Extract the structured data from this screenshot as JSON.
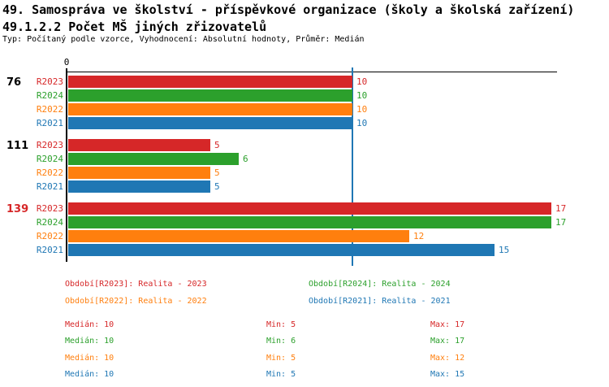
{
  "header": {
    "title_line1": "49. Samospráva ve školství - příspěvkové organizace (školy a školská zařízení)",
    "title_line2": "49.1.2.2 Počet MŠ jiných zřizovatelů",
    "meta": "Typ: Počítaný podle vzorce, Vyhodnocení: Absolutní hodnoty, Průměr: Medián"
  },
  "colors": {
    "R2023": "#d62728",
    "R2024": "#2ca02c",
    "R2022": "#ff7f0e",
    "R2021": "#1f77b4",
    "axis": "#000000",
    "median_line": "#1f77b4",
    "highlight_group_label": "#d62728"
  },
  "chart_data": {
    "type": "bar",
    "orientation": "horizontal",
    "title": "49.1.2.2 Počet MŠ jiných zřizovatelů",
    "xlabel": "",
    "ylabel": "",
    "x_axis": {
      "zero_label": "0",
      "xlim": [
        0,
        17.2
      ],
      "gridlines": false
    },
    "median_reference_line": {
      "value": 10,
      "color": "#1f77b4"
    },
    "series_order": [
      "R2023",
      "R2024",
      "R2022",
      "R2021"
    ],
    "series_colors": {
      "R2023": "#d62728",
      "R2024": "#2ca02c",
      "R2022": "#ff7f0e",
      "R2021": "#1f77b4"
    },
    "groups": [
      {
        "label": "76",
        "label_color": "#000000",
        "values": {
          "R2023": 10,
          "R2024": 10,
          "R2022": 10,
          "R2021": 10
        }
      },
      {
        "label": "111",
        "label_color": "#000000",
        "values": {
          "R2023": 5,
          "R2024": 6,
          "R2022": 5,
          "R2021": 5
        }
      },
      {
        "label": "139",
        "label_color": "#d62728",
        "values": {
          "R2023": 17,
          "R2024": 17,
          "R2022": 12,
          "R2021": 15
        }
      }
    ]
  },
  "legend": {
    "items": [
      {
        "label": "Období[R2023]: Realita - 2023",
        "color": "#d62728"
      },
      {
        "label": "Období[R2024]: Realita - 2024",
        "color": "#2ca02c"
      },
      {
        "label": "Období[R2022]: Realita - 2022",
        "color": "#ff7f0e"
      },
      {
        "label": "Období[R2021]: Realita - 2021",
        "color": "#1f77b4"
      }
    ]
  },
  "stats": {
    "rows": [
      {
        "series": "R2023",
        "color": "#d62728",
        "median_label": "Medián: 10",
        "min_label": "Min: 5",
        "max_label": "Max: 17"
      },
      {
        "series": "R2024",
        "color": "#2ca02c",
        "median_label": "Medián: 10",
        "min_label": "Min: 6",
        "max_label": "Max: 17"
      },
      {
        "series": "R2022",
        "color": "#ff7f0e",
        "median_label": "Medián: 10",
        "min_label": "Min: 5",
        "max_label": "Max: 12"
      },
      {
        "series": "R2021",
        "color": "#1f77b4",
        "median_label": "Medián: 10",
        "min_label": "Min: 5",
        "max_label": "Max: 15"
      }
    ]
  }
}
